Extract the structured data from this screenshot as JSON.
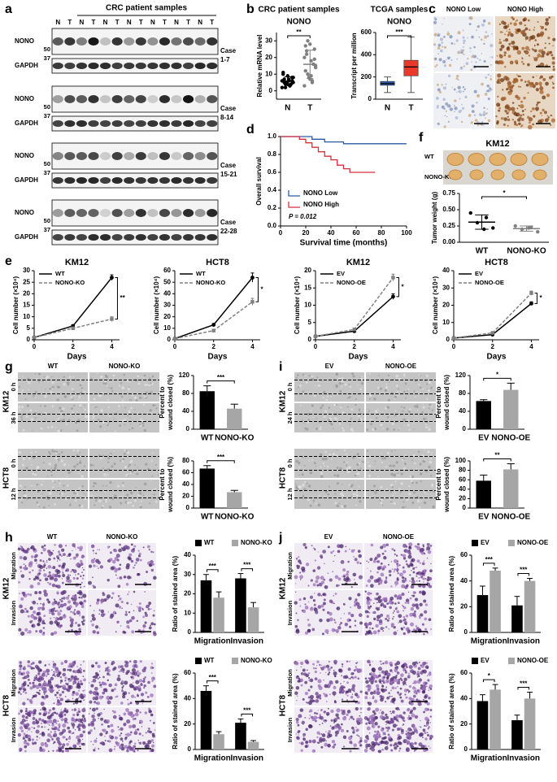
{
  "panel_labels": [
    "a",
    "b",
    "c",
    "d",
    "e",
    "f",
    "g",
    "h",
    "i",
    "j"
  ],
  "blot": {
    "title": "CRC patient samples",
    "lanes": [
      "N",
      "T"
    ],
    "blocks": [
      {
        "case": "Case",
        "range": "1-7",
        "rows": [
          {
            "protein": "NONO",
            "marker": "50"
          },
          {
            "protein": "GAPDH",
            "marker": "37"
          }
        ]
      },
      {
        "case": "Case",
        "range": "8-14",
        "rows": [
          {
            "protein": "NONO",
            "marker": "50"
          },
          {
            "protein": "GAPDH",
            "marker": "37"
          }
        ]
      },
      {
        "case": "Case",
        "range": "15-21",
        "rows": [
          {
            "protein": "NONO",
            "marker": "50"
          },
          {
            "protein": "GAPDH",
            "marker": "37"
          }
        ]
      },
      {
        "case": "Case",
        "range": "22-28",
        "rows": [
          {
            "protein": "NONO",
            "marker": "50"
          },
          {
            "protein": "GAPDH",
            "marker": "37"
          }
        ]
      }
    ]
  },
  "ihc": {
    "labels": [
      "NONO Low",
      "NONO High"
    ]
  },
  "xenograft": {
    "title": "KM12",
    "rows": [
      "WT",
      "NONO-KO"
    ]
  },
  "wound": [
    {
      "columns": [
        "WT",
        "NONO-KO"
      ],
      "groups": [
        {
          "line": "KM12",
          "times": [
            "0 h",
            "36 h"
          ]
        },
        {
          "line": "HCT8",
          "times": [
            "0 h",
            "12 h"
          ]
        }
      ]
    },
    {
      "columns": [
        "EV",
        "NONO-OE"
      ],
      "groups": [
        {
          "line": "KM12",
          "times": [
            "0 h",
            "24 h"
          ]
        },
        {
          "line": "HCT8",
          "times": [
            "0 h",
            "12 h"
          ]
        }
      ]
    }
  ],
  "transwell": [
    {
      "columns": [
        "WT",
        "NONO-KO"
      ],
      "groups": [
        {
          "line": "KM12",
          "rows": [
            "Migration",
            "Invasion"
          ]
        },
        {
          "line": "HCT8",
          "rows": [
            "Migration",
            "Invasion"
          ]
        }
      ]
    },
    {
      "columns": [
        "EV",
        "NONO-OE"
      ],
      "groups": [
        {
          "line": "KM12",
          "rows": [
            "Migration",
            "Invasion"
          ]
        },
        {
          "line": "HCT8",
          "rows": [
            "Migration",
            "Invasion"
          ]
        }
      ]
    }
  ],
  "chart_data": [
    {
      "type": "strip",
      "title": "CRC patient samples",
      "subtitle": "NONO",
      "ylabel": "Relative mRNA level",
      "categories": [
        "N",
        "T"
      ],
      "points": [
        [
          2,
          3,
          4,
          5,
          6,
          7,
          8,
          9,
          10,
          4,
          5,
          6,
          3,
          2,
          8,
          7,
          5,
          6,
          4,
          11
        ],
        [
          3,
          6,
          10,
          14,
          18,
          22,
          25,
          28,
          12,
          16,
          8,
          20,
          5,
          30,
          15,
          9,
          24,
          19,
          7,
          27
        ]
      ],
      "means": [
        5.8,
        15.9
      ],
      "errors": [
        2.6,
        8.5
      ],
      "colors": [
        "#000000",
        "#808080"
      ],
      "ylim": [
        -5,
        35
      ],
      "yticks": [
        0,
        10,
        20,
        30
      ],
      "significance": "**"
    },
    {
      "type": "box",
      "title": "TCGA samples",
      "subtitle": "NONO",
      "ylabel": "Transcript per million",
      "categories": [
        "N",
        "T"
      ],
      "boxes": [
        {
          "low": 60,
          "q1": 125,
          "median": 140,
          "q3": 160,
          "high": 200
        },
        {
          "low": 60,
          "q1": 210,
          "median": 290,
          "q3": 350,
          "high": 560
        }
      ],
      "colors": [
        "#2b5aa8",
        "#e8392b"
      ],
      "ylim": [
        0,
        600
      ],
      "yticks": [
        0,
        200,
        400,
        600
      ],
      "significance": "***"
    },
    {
      "type": "step",
      "ylabel": "Overall survival",
      "xlabel": "Survival time (months)",
      "xlim": [
        0,
        100
      ],
      "xticks": [
        0,
        20,
        40,
        60,
        80,
        100
      ],
      "ylim": [
        0,
        1
      ],
      "yticks": [
        {
          "value": 0,
          "label": "0.0"
        },
        0.2,
        0.4,
        0.6,
        0.8,
        {
          "value": 1,
          "label": "1.0"
        }
      ],
      "series": [
        {
          "name": "NONO Low",
          "color": "#2b5aa8",
          "x": [
            0,
            20,
            25,
            35,
            50,
            60,
            80,
            100
          ],
          "values": [
            1,
            1,
            0.97,
            0.94,
            0.92,
            0.92,
            0.92,
            0.92
          ]
        },
        {
          "name": "NONO High",
          "color": "#d62f3c",
          "x": [
            0,
            15,
            20,
            25,
            30,
            35,
            40,
            45,
            50,
            55,
            60,
            75
          ],
          "values": [
            1,
            0.97,
            0.93,
            0.88,
            0.83,
            0.78,
            0.74,
            0.68,
            0.64,
            0.6,
            0.6,
            0.6
          ]
        }
      ],
      "annotation": "P = 0.012",
      "legend": "bottom-left"
    },
    {
      "type": "strip",
      "ylabel": "Tumor weight (g)",
      "categories": [
        "WT",
        "NONO-KO"
      ],
      "points": [
        [
          0.45,
          0.38,
          0.3,
          0.22,
          0.2
        ],
        [
          0.25,
          0.23,
          0.2,
          0.16,
          0.22
        ]
      ],
      "means": [
        0.31,
        0.21
      ],
      "errors": [
        0.11,
        0.04
      ],
      "colors": [
        "#000000",
        "#808080"
      ],
      "ylim": [
        0,
        0.75
      ],
      "yticks": [
        {
          "value": 0,
          "label": "0.00"
        },
        0.25,
        {
          "value": 0.5,
          "label": "0.50"
        },
        0.75
      ],
      "significance": "*"
    },
    {
      "type": "line",
      "title": "KM12",
      "ylabel": "Cell number (×10⁴)",
      "xlabel": "Days",
      "x": [
        0,
        2,
        4
      ],
      "xlim": [
        0,
        4.4
      ],
      "xticks": [
        0,
        2,
        4
      ],
      "ylim": [
        0,
        30
      ],
      "yticks": [
        0,
        5,
        10,
        15,
        20,
        25,
        30
      ],
      "series": [
        {
          "name": "WT",
          "color": "#000000",
          "dashed": false,
          "values": [
            1,
            6,
            27
          ],
          "errors": [
            0.3,
            0.5,
            1.2
          ]
        },
        {
          "name": "NONO-KO",
          "color": "#808080",
          "dashed": true,
          "values": [
            1,
            5,
            9
          ],
          "errors": [
            0.3,
            0.4,
            1
          ]
        }
      ],
      "significance": "**",
      "legend": "top-left"
    },
    {
      "type": "line",
      "title": "HCT8",
      "ylabel": "Cell number (×10⁴)",
      "xlabel": "Days",
      "x": [
        0,
        2,
        4
      ],
      "xlim": [
        0,
        4.4
      ],
      "xticks": [
        0,
        2,
        4
      ],
      "ylim": [
        0,
        60
      ],
      "yticks": [
        0,
        10,
        20,
        30,
        40,
        50,
        60
      ],
      "series": [
        {
          "name": "WT",
          "color": "#000000",
          "dashed": false,
          "values": [
            1,
            13,
            54
          ],
          "errors": [
            0.3,
            1,
            4
          ]
        },
        {
          "name": "NONO-KO",
          "color": "#808080",
          "dashed": true,
          "values": [
            1,
            8,
            33
          ],
          "errors": [
            0.3,
            1,
            3
          ]
        }
      ],
      "significance": "*",
      "legend": "top-left"
    },
    {
      "type": "line",
      "title": "KM12",
      "ylabel": "Cell number (×10⁴)",
      "xlabel": "Days",
      "x": [
        0,
        2,
        4
      ],
      "xlim": [
        0,
        4.4
      ],
      "xticks": [
        0,
        2,
        4
      ],
      "ylim": [
        0,
        20
      ],
      "yticks": [
        0,
        5,
        10,
        15,
        20
      ],
      "series": [
        {
          "name": "EV",
          "color": "#000000",
          "dashed": false,
          "values": [
            1,
            2.5,
            12.5
          ],
          "errors": [
            0.2,
            0.3,
            0.8
          ]
        },
        {
          "name": "NONO-OE",
          "color": "#808080",
          "dashed": true,
          "values": [
            1,
            3,
            18
          ],
          "errors": [
            0.2,
            0.4,
            1
          ]
        }
      ],
      "significance": "*",
      "legend": "top-left"
    },
    {
      "type": "line",
      "title": "HCT8",
      "ylabel": "Cell number (×10⁴)",
      "xlabel": "Days",
      "x": [
        0,
        2,
        4
      ],
      "xlim": [
        0,
        4.4
      ],
      "xticks": [
        0,
        2,
        4
      ],
      "ylim": [
        0,
        40
      ],
      "yticks": [
        0,
        10,
        20,
        30,
        40
      ],
      "series": [
        {
          "name": "EV",
          "color": "#000000",
          "dashed": false,
          "values": [
            1,
            3,
            21
          ],
          "errors": [
            0.2,
            0.4,
            1
          ]
        },
        {
          "name": "NONO-OE",
          "color": "#808080",
          "dashed": true,
          "values": [
            1,
            4,
            27
          ],
          "errors": [
            0.2,
            0.5,
            1.2
          ]
        }
      ],
      "significance": "*",
      "legend": "top-left"
    },
    {
      "type": "bar",
      "ylabel": [
        "Percent to",
        "wound closed (%)"
      ],
      "categories": [
        "WT",
        "NONO-KO"
      ],
      "values": [
        85,
        46
      ],
      "errors": [
        12,
        10
      ],
      "colors": [
        "#000000",
        "#a6a6a6"
      ],
      "ylim": [
        0,
        120
      ],
      "yticks": [
        0,
        40,
        80,
        120
      ],
      "significance": "***"
    },
    {
      "type": "bar",
      "ylabel": [
        "Percent to",
        "wound closed (%)"
      ],
      "categories": [
        "WT",
        "NONO-KO"
      ],
      "values": [
        67,
        27
      ],
      "errors": [
        5,
        3
      ],
      "colors": [
        "#000000",
        "#a6a6a6"
      ],
      "ylim": [
        0,
        80
      ],
      "yticks": [
        0,
        20,
        40,
        60,
        80
      ],
      "significance": "***"
    },
    {
      "type": "bar",
      "ylabel": [
        "Percent to",
        "wound closed (%)"
      ],
      "categories": [
        "EV",
        "NONO-OE"
      ],
      "values": [
        63,
        88
      ],
      "errors": [
        3,
        15
      ],
      "colors": [
        "#000000",
        "#a6a6a6"
      ],
      "ylim": [
        0,
        120
      ],
      "yticks": [
        0,
        40,
        80,
        120
      ],
      "significance": "*"
    },
    {
      "type": "bar",
      "ylabel": [
        "Percent to",
        "wound closed (%)"
      ],
      "categories": [
        "EV",
        "NONO-OE"
      ],
      "values": [
        58,
        82
      ],
      "errors": [
        12,
        12
      ],
      "colors": [
        "#000000",
        "#a6a6a6"
      ],
      "ylim": [
        0,
        100
      ],
      "yticks": [
        0,
        20,
        40,
        60,
        80,
        100
      ],
      "significance": "**"
    },
    {
      "type": "bar",
      "ylabel": "Ratio of stained area (%)",
      "categories": [
        "Migration",
        "Invasion"
      ],
      "series": [
        {
          "name": "WT",
          "color": "#000000",
          "values": [
            27,
            28
          ],
          "errors": [
            3,
            2.5
          ]
        },
        {
          "name": "NONO-KO",
          "color": "#a6a6a6",
          "values": [
            18,
            13
          ],
          "errors": [
            3,
            2.5
          ]
        }
      ],
      "ylim": [
        0,
        40
      ],
      "yticks": [
        0,
        10,
        20,
        30,
        40
      ],
      "significance": [
        "***",
        "***"
      ],
      "legend": "top"
    },
    {
      "type": "bar",
      "ylabel": "Ratio of stained area (%)",
      "categories": [
        "Migration",
        "Invasion"
      ],
      "series": [
        {
          "name": "WT",
          "color": "#000000",
          "values": [
            46,
            21
          ],
          "errors": [
            4,
            3
          ]
        },
        {
          "name": "NONO-KO",
          "color": "#a6a6a6",
          "values": [
            12,
            6
          ],
          "errors": [
            2,
            1
          ]
        }
      ],
      "ylim": [
        0,
        60
      ],
      "yticks": [
        0,
        20,
        40,
        60
      ],
      "significance": [
        "***",
        "***"
      ],
      "legend": "top"
    },
    {
      "type": "bar",
      "ylabel": "Ratio of stained area (%)",
      "categories": [
        "Migration",
        "Invasion"
      ],
      "series": [
        {
          "name": "EV",
          "color": "#000000",
          "values": [
            29,
            21
          ],
          "errors": [
            7,
            7
          ]
        },
        {
          "name": "NONO-OE",
          "color": "#a6a6a6",
          "values": [
            48,
            40
          ],
          "errors": [
            2,
            2
          ]
        }
      ],
      "ylim": [
        0,
        60
      ],
      "yticks": [
        0,
        20,
        40,
        60
      ],
      "significance": [
        "***",
        "***"
      ],
      "legend": "top"
    },
    {
      "type": "bar",
      "ylabel": "Ratio of stained area (%)",
      "categories": [
        "Migration",
        "Invasion"
      ],
      "series": [
        {
          "name": "EV",
          "color": "#000000",
          "values": [
            38,
            23
          ],
          "errors": [
            5,
            4
          ]
        },
        {
          "name": "NONO-OE",
          "color": "#a6a6a6",
          "values": [
            47,
            40
          ],
          "errors": [
            4,
            5
          ]
        }
      ],
      "ylim": [
        0,
        60
      ],
      "yticks": [
        0,
        20,
        40,
        60
      ],
      "significance": [
        "*",
        "***"
      ],
      "legend": "top"
    }
  ]
}
